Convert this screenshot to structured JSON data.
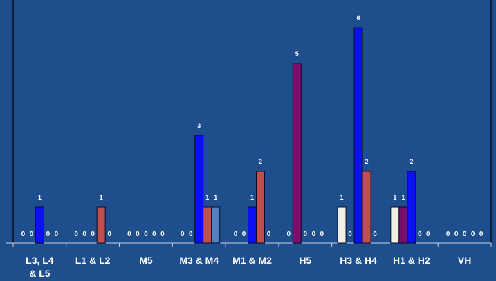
{
  "chart_data": {
    "type": "bar",
    "title": "",
    "xlabel": "",
    "ylabel": "",
    "ylim": [
      0,
      6
    ],
    "grid": false,
    "legend": "none",
    "categories": [
      "L3, L4 & L5",
      "L1 & L2",
      "M5",
      "M3 & M4",
      "M1 & M2",
      "H5",
      "H3 & H4",
      "H1 & H2",
      "VH"
    ],
    "series": [
      {
        "color": "#f2f0e6",
        "values": [
          0,
          0,
          0,
          0,
          0,
          0,
          1,
          1,
          0
        ]
      },
      {
        "color": "#7b0f6a",
        "values": [
          0,
          0,
          0,
          0,
          0,
          5,
          0,
          1,
          0
        ]
      },
      {
        "color": "#0a10f0",
        "values": [
          1,
          0,
          0,
          3,
          1,
          0,
          6,
          2,
          0
        ]
      },
      {
        "color": "#c0504d",
        "values": [
          0,
          1,
          0,
          1,
          2,
          0,
          2,
          0,
          0
        ]
      },
      {
        "color": "#4f81bd",
        "values": [
          0,
          0,
          0,
          1,
          0,
          0,
          0,
          0,
          0
        ]
      }
    ]
  }
}
